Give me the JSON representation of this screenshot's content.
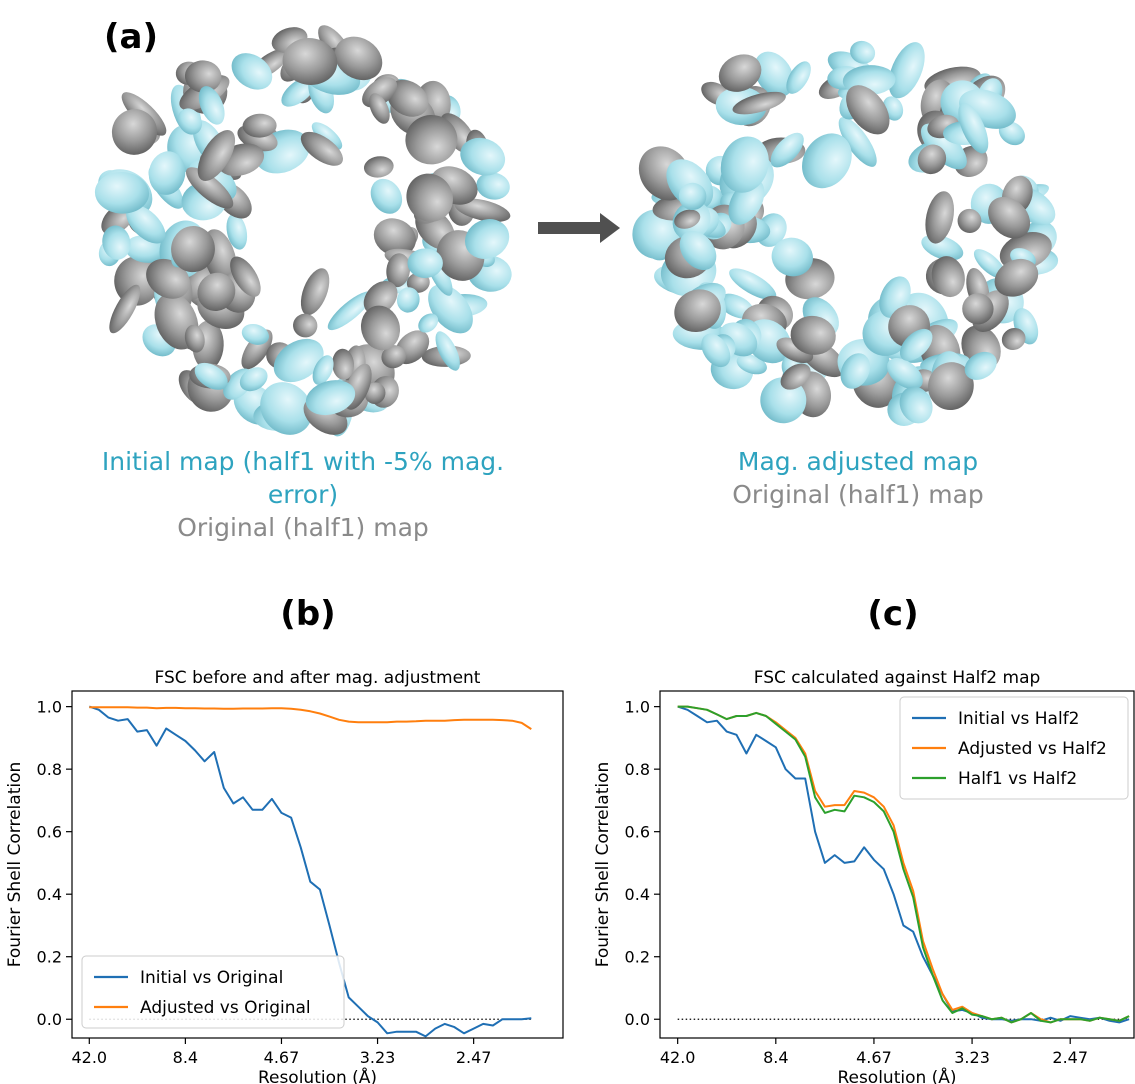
{
  "figure": {
    "panel_a": {
      "letter": "(a)",
      "left_caption_line1": "Initial map (half1 with -5% mag.",
      "left_caption_line2": "error)",
      "left_caption_line3": "Original (half1) map",
      "right_caption_line1": "Mag. adjusted map",
      "right_caption_line2": "Original (half1) map",
      "map_colors": {
        "initial": "#9fdbe6",
        "original": "#8c8c8c",
        "arrow": "#505050"
      }
    },
    "panel_b": {
      "letter": "(b)"
    },
    "panel_c": {
      "letter": "(c)"
    }
  },
  "chart_data": [
    {
      "type": "line",
      "title": "FSC before and after mag. adjustment",
      "xlabel": "Resolution (Å)",
      "ylabel": "Fourier Shell Correlation",
      "x_tick_labels": [
        "42.0",
        "8.4",
        "4.67",
        "3.23",
        "2.47"
      ],
      "x_tick_positions": [
        0,
        10,
        20,
        30,
        40
      ],
      "x_range": [
        -1.8,
        49.3
      ],
      "ylim": [
        -0.06,
        1.05
      ],
      "y_ticks": [
        0.0,
        0.2,
        0.4,
        0.6,
        0.8,
        1.0
      ],
      "y_tick_labels": [
        "0.0",
        "0.2",
        "0.4",
        "0.6",
        "0.8",
        "1.0"
      ],
      "reference_line": {
        "y": 0.0,
        "style": "dotted"
      },
      "legend_position": "lower-left",
      "series": [
        {
          "name": "Initial vs Original",
          "color": "#1f6fb4",
          "values": [
            1.0,
            0.99,
            0.965,
            0.955,
            0.96,
            0.92,
            0.925,
            0.875,
            0.93,
            0.91,
            0.89,
            0.86,
            0.825,
            0.855,
            0.74,
            0.69,
            0.71,
            0.67,
            0.67,
            0.705,
            0.66,
            0.645,
            0.55,
            0.44,
            0.415,
            0.3,
            0.18,
            0.07,
            0.04,
            0.01,
            -0.01,
            -0.045,
            -0.04,
            -0.04,
            -0.04,
            -0.055,
            -0.03,
            -0.015,
            -0.025,
            -0.045,
            -0.03,
            -0.015,
            -0.02,
            0.0,
            0.0,
            0.0,
            0.003
          ]
        },
        {
          "name": "Adjusted vs Original",
          "color": "#ff7f0e",
          "values": [
            0.998,
            0.998,
            0.998,
            0.998,
            0.998,
            0.997,
            0.997,
            0.995,
            0.996,
            0.996,
            0.995,
            0.995,
            0.994,
            0.994,
            0.993,
            0.993,
            0.994,
            0.994,
            0.994,
            0.995,
            0.995,
            0.993,
            0.99,
            0.985,
            0.978,
            0.968,
            0.958,
            0.952,
            0.95,
            0.95,
            0.95,
            0.95,
            0.952,
            0.952,
            0.953,
            0.955,
            0.955,
            0.955,
            0.957,
            0.958,
            0.958,
            0.958,
            0.958,
            0.957,
            0.955,
            0.948,
            0.928
          ]
        }
      ]
    },
    {
      "type": "line",
      "title": "FSC calculated against Half2 map",
      "xlabel": "Resolution (Å)",
      "ylabel": "Fourier Shell Correlation",
      "x_tick_labels": [
        "42.0",
        "8.4",
        "4.67",
        "3.23",
        "2.47"
      ],
      "x_tick_positions": [
        0,
        10,
        20,
        30,
        40
      ],
      "x_range": [
        -1.8,
        46.5
      ],
      "ylim": [
        -0.06,
        1.05
      ],
      "y_ticks": [
        0.0,
        0.2,
        0.4,
        0.6,
        0.8,
        1.0
      ],
      "y_tick_labels": [
        "0.0",
        "0.2",
        "0.4",
        "0.6",
        "0.8",
        "1.0"
      ],
      "reference_line": {
        "y": 0.0,
        "style": "dotted"
      },
      "legend_position": "upper-right",
      "series": [
        {
          "name": "Initial vs Half2",
          "color": "#1f6fb4",
          "values": [
            1.0,
            0.99,
            0.97,
            0.95,
            0.955,
            0.92,
            0.91,
            0.85,
            0.91,
            0.89,
            0.87,
            0.8,
            0.77,
            0.77,
            0.6,
            0.5,
            0.525,
            0.5,
            0.505,
            0.55,
            0.51,
            0.48,
            0.4,
            0.3,
            0.28,
            0.2,
            0.14,
            0.08,
            0.025,
            0.03,
            0.02,
            0.005,
            0.0,
            0.0,
            -0.005,
            0.0,
            0.0,
            -0.005,
            0.005,
            -0.005,
            0.01,
            0.005,
            0.0,
            0.005,
            -0.005,
            -0.01,
            0.0
          ]
        },
        {
          "name": "Adjusted vs Half2",
          "color": "#ff7f0e",
          "values": [
            1.0,
            1.0,
            0.995,
            0.99,
            0.975,
            0.96,
            0.97,
            0.97,
            0.98,
            0.97,
            0.95,
            0.925,
            0.9,
            0.85,
            0.73,
            0.68,
            0.685,
            0.685,
            0.73,
            0.725,
            0.71,
            0.68,
            0.62,
            0.5,
            0.41,
            0.25,
            0.16,
            0.08,
            0.03,
            0.04,
            0.02,
            0.01,
            0.0,
            0.005,
            -0.01,
            0.0,
            0.02,
            0.0,
            -0.01,
            0.0,
            0.0,
            0.0,
            -0.005,
            0.005,
            0.0,
            -0.005,
            0.01
          ]
        },
        {
          "name": "Half1 vs Half2",
          "color": "#2ca02c",
          "values": [
            1.0,
            1.0,
            0.995,
            0.99,
            0.975,
            0.96,
            0.97,
            0.97,
            0.98,
            0.97,
            0.945,
            0.92,
            0.895,
            0.84,
            0.71,
            0.66,
            0.67,
            0.665,
            0.715,
            0.71,
            0.695,
            0.665,
            0.6,
            0.48,
            0.39,
            0.23,
            0.14,
            0.06,
            0.02,
            0.035,
            0.015,
            0.01,
            0.0,
            0.005,
            -0.01,
            0.0,
            0.02,
            -0.005,
            -0.01,
            0.0,
            0.0,
            0.0,
            -0.005,
            0.005,
            0.0,
            -0.005,
            0.01
          ]
        }
      ]
    }
  ]
}
